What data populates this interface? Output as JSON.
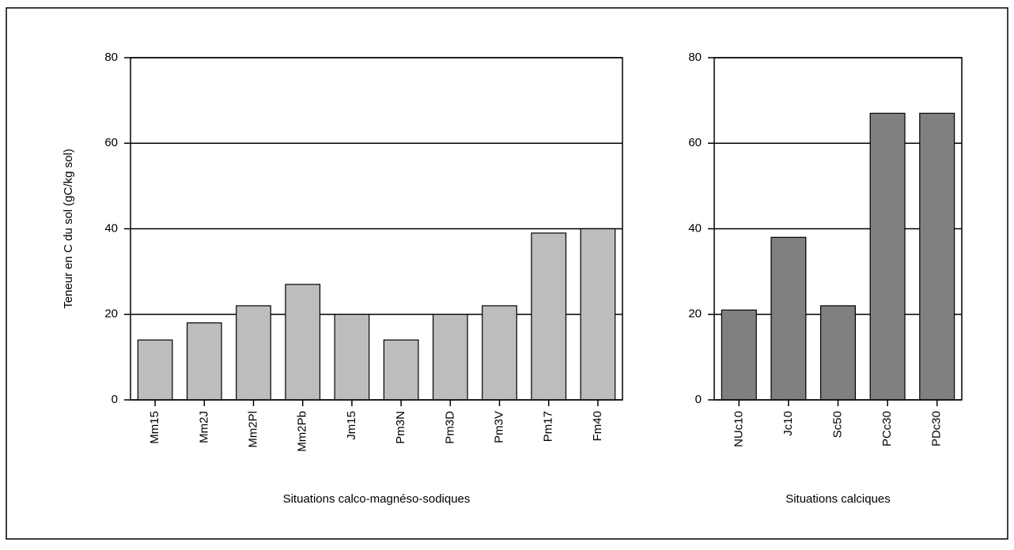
{
  "chart_data": [
    {
      "type": "bar",
      "ylabel": "Teneur en C du sol (gC/kg sol)",
      "xlabel": "Situations calco-magnéso-sodiques",
      "categories": [
        "Mm15",
        "Mm2J",
        "Mm2Pl",
        "Mm2Pb",
        "Jm15",
        "Pm3N",
        "Pm3D",
        "Pm3V",
        "Pm17",
        "Fm40"
      ],
      "values": [
        14,
        18,
        22,
        27,
        20,
        14,
        20,
        22,
        39,
        40
      ],
      "color": "#bdbdbd",
      "ylim": [
        0,
        80
      ],
      "yticks": [
        0,
        20,
        40,
        60,
        80
      ],
      "grid": true
    },
    {
      "type": "bar",
      "xlabel": "Situations calciques",
      "categories": [
        "NUc10",
        "Jc10",
        "Sc50",
        "PCc30",
        "PDc30"
      ],
      "values": [
        21,
        38,
        22,
        67,
        67
      ],
      "color": "#808080",
      "ylim": [
        0,
        80
      ],
      "yticks": [
        0,
        20,
        40,
        60,
        80
      ],
      "grid": true
    }
  ]
}
